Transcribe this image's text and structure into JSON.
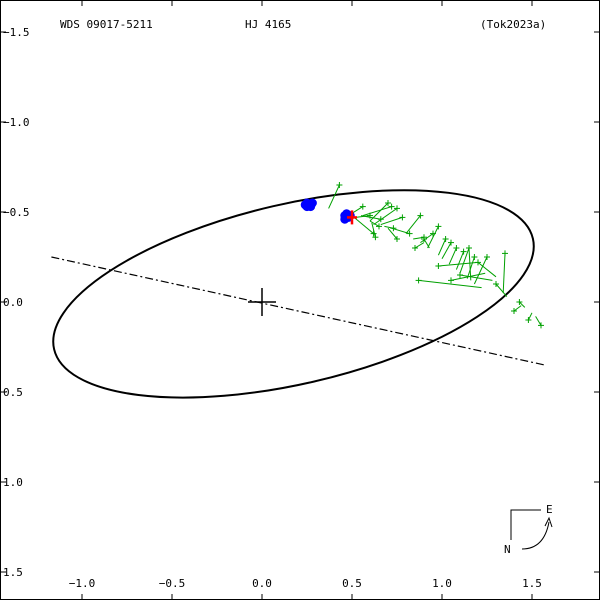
{
  "header": {
    "wds_id": "WDS 09017-5211",
    "name": "HJ 4165",
    "reference": "(Tok2023a)"
  },
  "compass": {
    "east_label": "E",
    "north_label": "N"
  },
  "chart_data": {
    "type": "scatter",
    "title": "",
    "xlabel": "",
    "ylabel": "",
    "xlim": [
      -1.2,
      1.85
    ],
    "ylim": [
      1.6,
      -1.6
    ],
    "x_ticks": [
      -1.0,
      -0.5,
      0.0,
      0.5,
      1.0,
      1.5
    ],
    "x_tick_labels": [
      "−1.0",
      "−0.5",
      "0.0",
      "0.5",
      "1.0",
      "1.5"
    ],
    "y_ticks": [
      -1.5,
      -1.0,
      -0.5,
      0.0,
      0.5,
      1.0,
      1.5
    ],
    "y_tick_labels": [
      "−1.5",
      "−1.0",
      "−0.5",
      "0.0",
      "0.5",
      "1.0",
      "1.5"
    ],
    "grid": false,
    "primary_star": [
      0.0,
      0.0
    ],
    "orbit_ellipse": {
      "center": [
        0.175,
        -0.045
      ],
      "semi_major": 1.365,
      "semi_minor": 0.5,
      "angle_deg": -13
    },
    "line_of_nodes": [
      [
        -1.17,
        -0.25
      ],
      [
        1.57,
        0.35
      ]
    ],
    "micrometric_observations": {
      "color": "#00a000",
      "observed": [
        [
          0.43,
          -0.65
        ],
        [
          0.56,
          -0.53
        ],
        [
          0.62,
          -0.38
        ],
        [
          0.72,
          -0.53
        ],
        [
          0.7,
          -0.55
        ],
        [
          0.75,
          -0.52
        ],
        [
          0.65,
          -0.42
        ],
        [
          0.73,
          -0.41
        ],
        [
          0.82,
          -0.38
        ],
        [
          0.88,
          -0.48
        ],
        [
          0.9,
          -0.36
        ],
        [
          0.95,
          -0.38
        ],
        [
          0.98,
          -0.42
        ],
        [
          1.02,
          -0.35
        ],
        [
          1.05,
          -0.33
        ],
        [
          1.08,
          -0.3
        ],
        [
          1.12,
          -0.28
        ],
        [
          1.15,
          -0.3
        ],
        [
          1.18,
          -0.25
        ],
        [
          1.25,
          -0.25
        ],
        [
          0.98,
          -0.2
        ],
        [
          1.05,
          -0.12
        ],
        [
          1.1,
          -0.15
        ],
        [
          0.87,
          -0.12
        ],
        [
          1.3,
          -0.1
        ],
        [
          1.2,
          -0.22
        ],
        [
          1.4,
          0.05
        ],
        [
          1.43,
          0.0
        ],
        [
          1.48,
          0.1
        ],
        [
          1.55,
          0.13
        ],
        [
          0.85,
          -0.3
        ],
        [
          0.6,
          -0.48
        ],
        [
          0.66,
          -0.46
        ],
        [
          0.78,
          -0.47
        ],
        [
          0.63,
          -0.36
        ],
        [
          1.15,
          -0.3
        ],
        [
          1.35,
          -0.27
        ],
        [
          0.9,
          -0.35
        ],
        [
          0.75,
          -0.35
        ]
      ],
      "predicted": [
        [
          0.37,
          -0.52
        ],
        [
          0.48,
          -0.48
        ],
        [
          0.5,
          -0.48
        ],
        [
          0.56,
          -0.48
        ],
        [
          0.6,
          -0.45
        ],
        [
          0.62,
          -0.43
        ],
        [
          0.6,
          -0.45
        ],
        [
          0.68,
          -0.42
        ],
        [
          0.72,
          -0.41
        ],
        [
          0.8,
          -0.38
        ],
        [
          0.84,
          -0.35
        ],
        [
          0.88,
          -0.33
        ],
        [
          0.92,
          -0.3
        ],
        [
          0.98,
          -0.26
        ],
        [
          1.0,
          -0.24
        ],
        [
          1.04,
          -0.21
        ],
        [
          1.08,
          -0.18
        ],
        [
          1.1,
          -0.16
        ],
        [
          1.14,
          -0.13
        ],
        [
          1.18,
          -0.1
        ],
        [
          1.2,
          -0.22
        ],
        [
          1.24,
          -0.16
        ],
        [
          1.28,
          -0.12
        ],
        [
          1.22,
          -0.08
        ],
        [
          1.36,
          -0.03
        ],
        [
          1.3,
          -0.14
        ],
        [
          1.44,
          0.02
        ],
        [
          1.46,
          0.03
        ],
        [
          1.5,
          0.06
        ],
        [
          1.52,
          0.08
        ],
        [
          0.9,
          -0.33
        ],
        [
          0.52,
          -0.47
        ],
        [
          0.55,
          -0.48
        ],
        [
          0.66,
          -0.43
        ],
        [
          0.61,
          -0.44
        ],
        [
          1.16,
          -0.12
        ],
        [
          1.34,
          -0.05
        ],
        [
          0.93,
          -0.3
        ],
        [
          0.7,
          -0.41
        ]
      ]
    },
    "interferometric_observations": {
      "color": "#0000ff",
      "points": [
        [
          0.24,
          -0.54
        ],
        [
          0.25,
          -0.55
        ],
        [
          0.26,
          -0.54
        ],
        [
          0.27,
          -0.54
        ],
        [
          0.28,
          -0.55
        ],
        [
          0.25,
          -0.53
        ],
        [
          0.27,
          -0.53
        ],
        [
          0.46,
          -0.48
        ],
        [
          0.47,
          -0.49
        ],
        [
          0.48,
          -0.47
        ],
        [
          0.46,
          -0.46
        ],
        [
          0.49,
          -0.48
        ],
        [
          0.47,
          -0.47
        ]
      ]
    },
    "current_epoch_marker": {
      "color": "#ff0000",
      "position": [
        0.5,
        -0.47
      ]
    }
  }
}
